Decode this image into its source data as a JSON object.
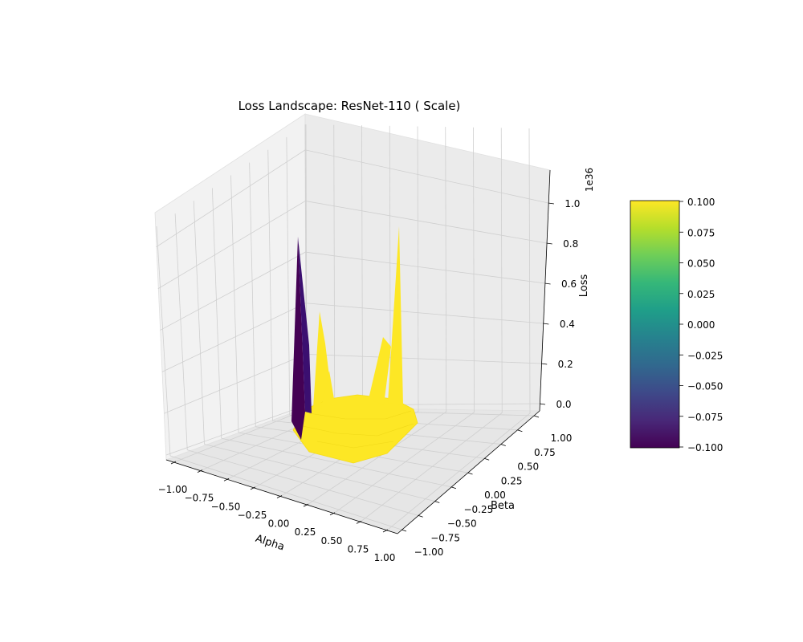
{
  "chart_data": {
    "type": "surface3d",
    "title": "Loss Landscape: ResNet-110 ( Scale)",
    "xlabel": "Alpha",
    "ylabel": "Beta",
    "zlabel": "Loss",
    "z_offset_label": "1e36",
    "xlim": [
      -1.0,
      1.0
    ],
    "ylim": [
      -1.0,
      1.0
    ],
    "zlim": [
      0,
      1.1
    ],
    "grid": true,
    "x_ticks": [
      "−1.00",
      "−0.75",
      "−0.50",
      "−0.25",
      "0.00",
      "0.25",
      "0.50",
      "0.75",
      "1.00"
    ],
    "y_ticks": [
      "−1.00",
      "−0.75",
      "−0.50",
      "−0.25",
      "0.00",
      "0.25",
      "0.50",
      "0.75",
      "1.00"
    ],
    "z_ticks": [
      "0.0",
      "0.2",
      "0.4",
      "0.6",
      "0.8",
      "1.0"
    ],
    "surface": {
      "flat_color": "#fde725",
      "spikes": [
        {
          "alpha": -0.45,
          "beta": 0.55,
          "loss": 0.85,
          "color": "#440154"
        },
        {
          "alpha": -0.35,
          "beta": 0.45,
          "loss": 0.45,
          "color": "#fde725"
        },
        {
          "alpha": 0.25,
          "beta": 0.85,
          "loss": 0.95,
          "color": "#fde725"
        },
        {
          "alpha": 0.15,
          "beta": 0.75,
          "loss": 0.3,
          "color": "#fde725"
        }
      ]
    },
    "colorbar": {
      "colormap": "viridis",
      "colors": [
        "#440154",
        "#482878",
        "#3e4989",
        "#31688e",
        "#26828e",
        "#1f9e89",
        "#35b779",
        "#6ece58",
        "#b5de2b",
        "#fde725"
      ],
      "ticks": [
        "0.100",
        "0.075",
        "0.050",
        "0.025",
        "0.000",
        "−0.025",
        "−0.050",
        "−0.075",
        "−0.100"
      ]
    }
  }
}
